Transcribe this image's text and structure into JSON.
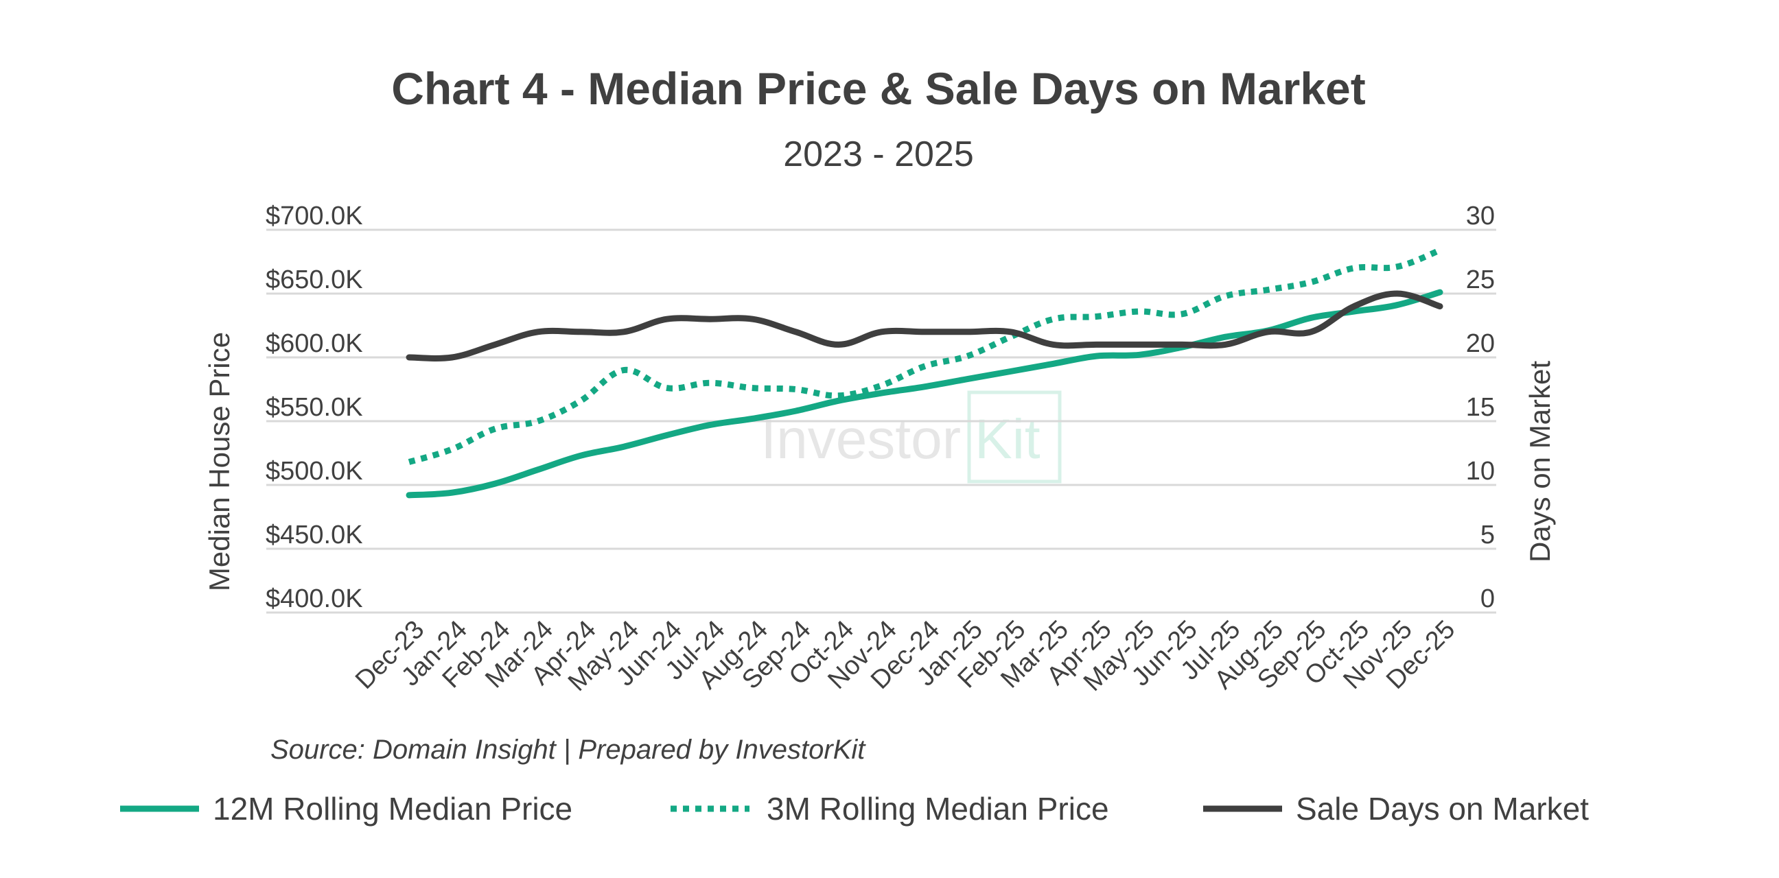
{
  "chart_data": {
    "type": "line",
    "title": "Chart 4 - Median Price & Sale Days on Market",
    "subtitle": "2023 - 2025",
    "source": "Source: Domain Insight | Prepared by InvestorKit",
    "watermark": {
      "part1": "Investor",
      "part2": "Kit"
    },
    "categories": [
      "Dec-23",
      "Jan-24",
      "Feb-24",
      "Mar-24",
      "Apr-24",
      "May-24",
      "Jun-24",
      "Jul-24",
      "Aug-24",
      "Sep-24",
      "Oct-24",
      "Nov-24",
      "Dec-24",
      "Jan-25",
      "Feb-25",
      "Mar-25",
      "Apr-25",
      "May-25",
      "Jun-25",
      "Jul-25",
      "Aug-25",
      "Sep-25",
      "Oct-25",
      "Nov-25",
      "Dec-25"
    ],
    "y_left": {
      "label": "Median House Price",
      "range": [
        400000,
        700000
      ],
      "ticks": [
        {
          "value": 400000,
          "label": "$400.0K"
        },
        {
          "value": 450000,
          "label": "$450.0K"
        },
        {
          "value": 500000,
          "label": "$500.0K"
        },
        {
          "value": 550000,
          "label": "$550.0K"
        },
        {
          "value": 600000,
          "label": "$600.0K"
        },
        {
          "value": 650000,
          "label": "$650.0K"
        },
        {
          "value": 700000,
          "label": "$700.0K"
        }
      ]
    },
    "y_right": {
      "label": "Days on Market",
      "range": [
        0,
        30
      ],
      "ticks": [
        {
          "value": 0,
          "label": "0"
        },
        {
          "value": 5,
          "label": "5"
        },
        {
          "value": 10,
          "label": "10"
        },
        {
          "value": 15,
          "label": "15"
        },
        {
          "value": 20,
          "label": "20"
        },
        {
          "value": 25,
          "label": "25"
        },
        {
          "value": 30,
          "label": "30"
        }
      ]
    },
    "grid": true,
    "legend_position": "bottom",
    "series": [
      {
        "name": "12M Rolling Median Price",
        "axis": "left",
        "style": "solid",
        "color": "#14a884",
        "values": [
          492000,
          494000,
          501000,
          512000,
          523000,
          530000,
          539000,
          547000,
          552000,
          558000,
          566000,
          572000,
          577000,
          583000,
          589000,
          595000,
          601000,
          602000,
          608000,
          616000,
          621000,
          631000,
          636000,
          641000,
          651000
        ]
      },
      {
        "name": "3M Rolling Median Price",
        "axis": "left",
        "style": "dotted",
        "color": "#14a884",
        "values": [
          518000,
          528000,
          544000,
          550000,
          566000,
          590000,
          576000,
          580000,
          576000,
          575000,
          570000,
          578000,
          593000,
          601000,
          616000,
          630000,
          632000,
          636000,
          634000,
          648000,
          653000,
          659000,
          670000,
          671000,
          684000
        ]
      },
      {
        "name": "Sale Days on Market",
        "axis": "right",
        "style": "solid",
        "color": "#3f3f3f",
        "values": [
          20,
          20,
          21,
          22,
          22,
          22,
          23,
          23,
          23,
          22,
          21,
          22,
          22,
          22,
          22,
          21,
          21,
          21,
          21,
          21,
          22,
          22,
          24,
          25,
          24
        ]
      }
    ]
  }
}
